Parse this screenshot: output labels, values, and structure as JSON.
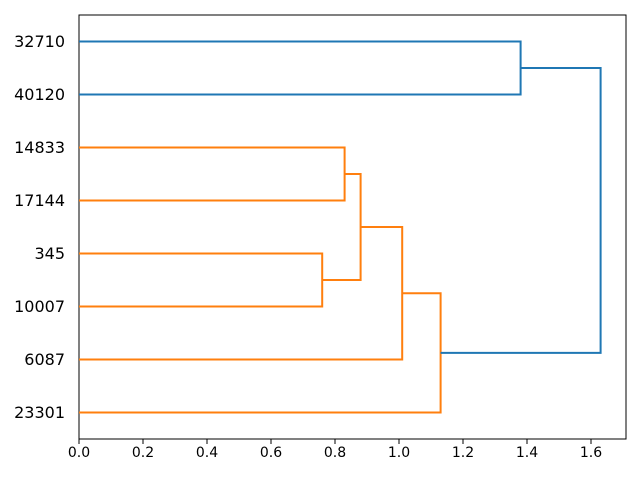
{
  "figure": {
    "background": "#ffffff",
    "border_color": "#000000"
  },
  "chart_data": {
    "type": "dendrogram",
    "orientation": "horizontal-left-leaves",
    "title": "",
    "xlabel": "",
    "ylabel": "",
    "grid": false,
    "xlim": [
      0,
      1.71
    ],
    "leaves": [
      "32710",
      "40120",
      "14833",
      "17144",
      "345",
      "10007",
      "6087",
      "23301"
    ],
    "links": [
      {
        "id": "L1",
        "a": "14833",
        "b": "17144",
        "distance": 0.83,
        "color": "#ff7f0e"
      },
      {
        "id": "L2",
        "a": "345",
        "b": "10007",
        "distance": 0.76,
        "color": "#ff7f0e"
      },
      {
        "id": "L3",
        "a": "L1",
        "b": "L2",
        "distance": 0.88,
        "color": "#ff7f0e"
      },
      {
        "id": "L4",
        "a": "L3",
        "b": "6087",
        "distance": 1.01,
        "color": "#ff7f0e"
      },
      {
        "id": "L5",
        "a": "L4",
        "b": "23301",
        "distance": 1.13,
        "color": "#ff7f0e"
      },
      {
        "id": "L6",
        "a": "32710",
        "b": "40120",
        "distance": 1.38,
        "color": "#1f77b4"
      },
      {
        "id": "L7",
        "a": "L6",
        "b": "L5",
        "distance": 1.63,
        "color": "#1f77b4"
      }
    ],
    "x_tick_labels": [
      "0.0",
      "0.2",
      "0.4",
      "0.6",
      "0.8",
      "1.0",
      "1.2",
      "1.4",
      "1.6"
    ],
    "colors": {
      "above_threshold_link": "#1f77b4",
      "cluster_link": "#ff7f0e"
    }
  }
}
